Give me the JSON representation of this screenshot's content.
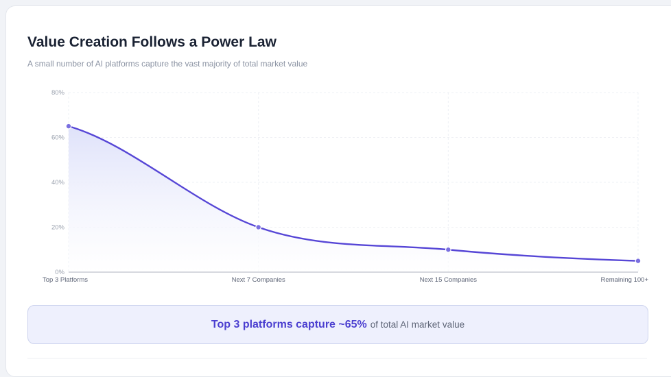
{
  "header": {
    "title": "Value Creation Follows a Power Law",
    "subtitle": "A small number of AI platforms capture the vast majority of total market value"
  },
  "chart_data": {
    "type": "area",
    "categories": [
      "Top 3 Platforms",
      "Next 7 Companies",
      "Next 15 Companies",
      "Remaining 100+"
    ],
    "values": [
      65,
      20,
      10,
      5
    ],
    "ylim": [
      0,
      80
    ],
    "yticks": [
      0,
      20,
      40,
      60,
      80
    ],
    "ytick_format": "%",
    "grid": true,
    "line_color": "#5646d6",
    "fill_color": "#e3e5fb"
  },
  "callout": {
    "strong": "Top 3 platforms capture ~65%",
    "rest": "of total AI market value"
  }
}
